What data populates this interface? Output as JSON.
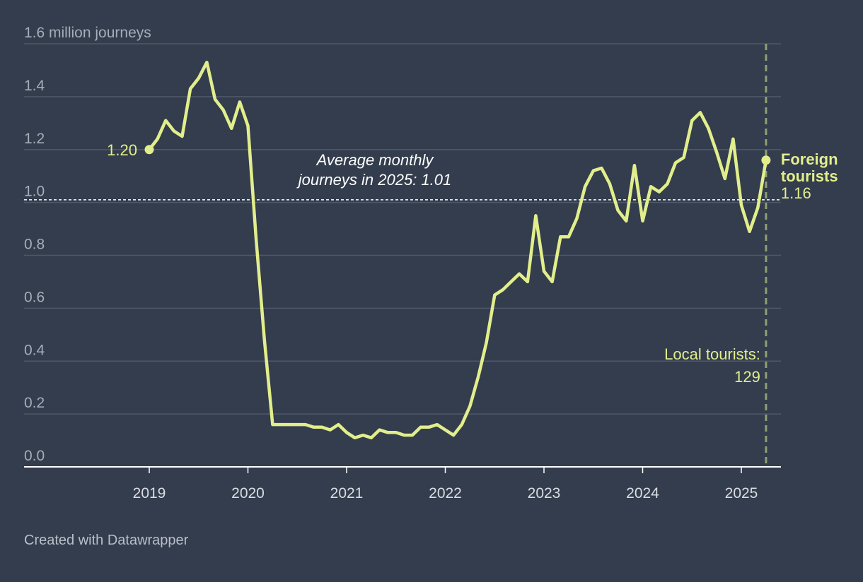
{
  "chart_data": {
    "type": "line",
    "ylabel": "1.6 million journeys",
    "ylim": [
      0,
      1.6
    ],
    "y_ticks": [
      {
        "value": 1.6,
        "label": "1.6 million journeys"
      },
      {
        "value": 1.4,
        "label": "1.4"
      },
      {
        "value": 1.2,
        "label": "1.2"
      },
      {
        "value": 1.0,
        "label": "1.0"
      },
      {
        "value": 0.8,
        "label": "0.8"
      },
      {
        "value": 0.6,
        "label": "0.6"
      },
      {
        "value": 0.4,
        "label": "0.4"
      },
      {
        "value": 0.2,
        "label": "0.2"
      },
      {
        "value": 0.0,
        "label": "0.0"
      }
    ],
    "x_ticks": [
      "2019",
      "2020",
      "2021",
      "2022",
      "2023",
      "2024",
      "2025"
    ],
    "grid": true,
    "colors": {
      "line": "#e2ee8c",
      "background": "#333d4d",
      "grid": "#4e5869",
      "marker_line": "#8e9f74"
    },
    "series": [
      {
        "name": "Foreign tourists",
        "x": [
          "2019-01",
          "2019-02",
          "2019-03",
          "2019-04",
          "2019-05",
          "2019-06",
          "2019-07",
          "2019-08",
          "2019-09",
          "2019-10",
          "2019-11",
          "2019-12",
          "2020-01",
          "2020-02",
          "2020-03",
          "2020-04",
          "2020-05",
          "2020-06",
          "2020-07",
          "2020-08",
          "2020-09",
          "2020-10",
          "2020-11",
          "2020-12",
          "2021-01",
          "2021-02",
          "2021-03",
          "2021-04",
          "2021-05",
          "2021-06",
          "2021-07",
          "2021-08",
          "2021-09",
          "2021-10",
          "2021-11",
          "2021-12",
          "2022-01",
          "2022-02",
          "2022-03",
          "2022-04",
          "2022-05",
          "2022-06",
          "2022-07",
          "2022-08",
          "2022-09",
          "2022-10",
          "2022-11",
          "2022-12",
          "2023-01",
          "2023-02",
          "2023-03",
          "2023-04",
          "2023-05",
          "2023-06",
          "2023-07",
          "2023-08",
          "2023-09",
          "2023-10",
          "2023-11",
          "2023-12",
          "2024-01",
          "2024-02",
          "2024-03",
          "2024-04",
          "2024-05",
          "2024-06",
          "2024-07",
          "2024-08",
          "2024-09",
          "2024-10",
          "2024-11",
          "2024-12",
          "2025-01",
          "2025-02",
          "2025-03",
          "2025-04"
        ],
        "values": [
          1.2,
          1.24,
          1.31,
          1.27,
          1.25,
          1.43,
          1.47,
          1.53,
          1.39,
          1.35,
          1.28,
          1.38,
          1.29,
          0.86,
          0.48,
          0.16,
          0.16,
          0.16,
          0.16,
          0.16,
          0.15,
          0.15,
          0.14,
          0.16,
          0.13,
          0.11,
          0.12,
          0.11,
          0.14,
          0.13,
          0.13,
          0.12,
          0.12,
          0.15,
          0.15,
          0.16,
          0.14,
          0.12,
          0.16,
          0.23,
          0.34,
          0.47,
          0.65,
          0.67,
          0.7,
          0.73,
          0.7,
          0.95,
          0.74,
          0.7,
          0.87,
          0.87,
          0.94,
          1.06,
          1.12,
          1.13,
          1.07,
          0.97,
          0.93,
          1.14,
          0.93,
          1.06,
          1.04,
          1.07,
          1.15,
          1.17,
          1.31,
          1.34,
          1.28,
          1.19,
          1.09,
          1.24,
          0.99,
          0.89,
          0.98,
          1.16
        ]
      }
    ],
    "reference_line": {
      "value": 1.01,
      "label_line1": "Average monthly",
      "label_line2": "journeys in 2025: 1.01"
    },
    "marker_date": "2025-04",
    "annotations": {
      "start_value": "1.20",
      "end_label_line1": "Foreign",
      "end_label_line2": "tourists",
      "end_value": "1.16",
      "local_line1": "Local tourists:",
      "local_line2": "129"
    }
  },
  "footer": {
    "credit": "Created with Datawrapper"
  }
}
